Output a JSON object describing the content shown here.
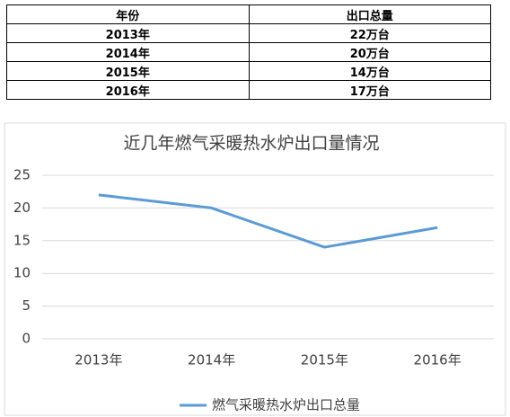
{
  "table": {
    "header": [
      "年份",
      "出口总量"
    ],
    "rows": [
      [
        "2013年",
        "22万台"
      ],
      [
        "2014年",
        "20万台"
      ],
      [
        "2015年",
        "14万台"
      ],
      [
        "2016年",
        "17万台"
      ]
    ]
  },
  "chart_data": {
    "type": "line",
    "title": "近几年燃气采暖热水炉出口量情况",
    "categories": [
      "2013年",
      "2014年",
      "2015年",
      "2016年"
    ],
    "series": [
      {
        "name": "燃气采暖热水炉出口总量",
        "color": "#5b9bd5",
        "values": [
          22,
          20,
          14,
          17
        ]
      }
    ],
    "ylim": [
      0,
      25
    ],
    "yticks": [
      0,
      5,
      10,
      15,
      20,
      25
    ],
    "grid": true,
    "legend": "bottom"
  }
}
